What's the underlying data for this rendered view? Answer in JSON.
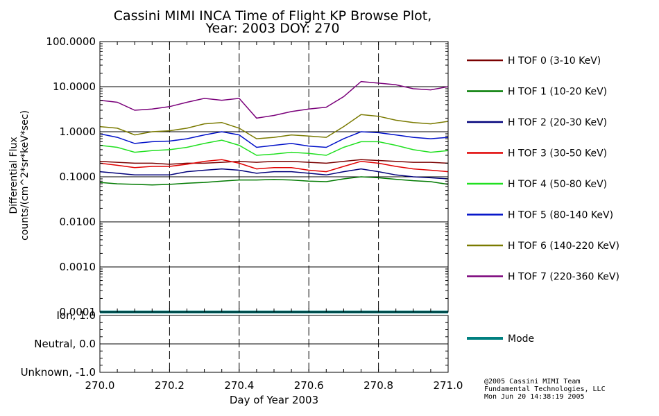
{
  "chart_data": {
    "type": "line",
    "title_line1": "Cassini MIMI INCA Time of Flight KP Browse Plot,",
    "title_line2": "Year: 2003 DOY: 270",
    "xlabel": "Day of Year 2003",
    "ylabel_line1": "Differential Flux",
    "ylabel_line2": "counts/(cm^2*sr*keV*sec)",
    "xlim": [
      270.0,
      271.0
    ],
    "xticks": [
      "270.0",
      "270.2",
      "270.4",
      "270.6",
      "270.8",
      "271.0"
    ],
    "flux_ylim": [
      0.0001,
      100.0
    ],
    "flux_ticks": [
      "100.0000",
      "10.0000",
      "1.0000",
      "0.1000",
      "0.0100",
      "0.0010",
      "0.0001"
    ],
    "mode_ylim": [
      -1.0,
      1.0
    ],
    "mode_ticks": [
      "Ion, 1.0",
      "Neutral, 0.0",
      "Unknown, -1.0"
    ],
    "x": [
      270.0,
      270.05,
      270.1,
      270.15,
      270.2,
      270.25,
      270.3,
      270.35,
      270.4,
      270.45,
      270.5,
      270.55,
      270.6,
      270.65,
      270.7,
      270.75,
      270.8,
      270.85,
      270.9,
      270.95,
      271.0
    ],
    "series": [
      {
        "name": "H TOF 0 (3-10 KeV)",
        "color": "#7a0000",
        "values": [
          0.22,
          0.21,
          0.2,
          0.2,
          0.19,
          0.2,
          0.2,
          0.21,
          0.22,
          0.21,
          0.22,
          0.22,
          0.21,
          0.2,
          0.22,
          0.24,
          0.23,
          0.22,
          0.21,
          0.21,
          0.2
        ]
      },
      {
        "name": "H TOF 1 (10-20 KeV)",
        "color": "#007a00",
        "values": [
          0.075,
          0.07,
          0.068,
          0.066,
          0.068,
          0.072,
          0.075,
          0.08,
          0.085,
          0.085,
          0.087,
          0.085,
          0.08,
          0.078,
          0.09,
          0.1,
          0.095,
          0.088,
          0.082,
          0.078,
          0.068
        ]
      },
      {
        "name": "H TOF 2 (20-30 KeV)",
        "color": "#00007a",
        "values": [
          0.13,
          0.12,
          0.11,
          0.11,
          0.11,
          0.13,
          0.14,
          0.15,
          0.14,
          0.12,
          0.13,
          0.13,
          0.12,
          0.11,
          0.13,
          0.15,
          0.13,
          0.11,
          0.1,
          0.095,
          0.09
        ]
      },
      {
        "name": "H TOF 3 (30-50 KeV)",
        "color": "#e00000",
        "values": [
          0.2,
          0.18,
          0.16,
          0.17,
          0.17,
          0.19,
          0.22,
          0.24,
          0.2,
          0.15,
          0.16,
          0.16,
          0.14,
          0.13,
          0.17,
          0.22,
          0.2,
          0.17,
          0.15,
          0.14,
          0.13
        ]
      },
      {
        "name": "H TOF 4 (50-80 KeV)",
        "color": "#20e020",
        "values": [
          0.5,
          0.45,
          0.35,
          0.38,
          0.4,
          0.45,
          0.55,
          0.65,
          0.5,
          0.3,
          0.32,
          0.35,
          0.33,
          0.3,
          0.45,
          0.6,
          0.6,
          0.5,
          0.4,
          0.35,
          0.38
        ]
      },
      {
        "name": "H TOF 5 (80-140 KeV)",
        "color": "#0010c8",
        "values": [
          0.9,
          0.75,
          0.55,
          0.6,
          0.62,
          0.7,
          0.85,
          1.0,
          0.85,
          0.45,
          0.5,
          0.55,
          0.48,
          0.45,
          0.7,
          1.0,
          0.95,
          0.85,
          0.75,
          0.7,
          0.75
        ]
      },
      {
        "name": "H TOF 6 (140-220 KeV)",
        "color": "#7a7a00",
        "values": [
          1.3,
          1.2,
          0.85,
          1.0,
          1.05,
          1.2,
          1.5,
          1.6,
          1.2,
          0.7,
          0.75,
          0.85,
          0.8,
          0.75,
          1.3,
          2.4,
          2.2,
          1.8,
          1.6,
          1.5,
          1.7
        ]
      },
      {
        "name": "H TOF 7 (220-360 KeV)",
        "color": "#7a007a",
        "values": [
          5.0,
          4.5,
          3.0,
          3.2,
          3.6,
          4.5,
          5.5,
          5.0,
          5.5,
          2.0,
          2.3,
          2.8,
          3.2,
          3.5,
          6.0,
          13.0,
          12.0,
          11.0,
          9.0,
          8.5,
          10.0
        ]
      },
      {
        "name": "Mode",
        "color": "#008080",
        "values": [
          1.0,
          1.0,
          1.0,
          1.0,
          1.0,
          1.0,
          1.0,
          1.0,
          1.0,
          1.0,
          1.0,
          1.0,
          1.0,
          1.0,
          1.0,
          1.0,
          1.0,
          1.0,
          1.0,
          1.0,
          1.0
        ]
      }
    ]
  },
  "credits": {
    "line1": "@2005 Cassini MIMI Team",
    "line2": "Fundamental Technologies, LLC",
    "line3": "Mon Jun 20 14:38:19 2005"
  }
}
